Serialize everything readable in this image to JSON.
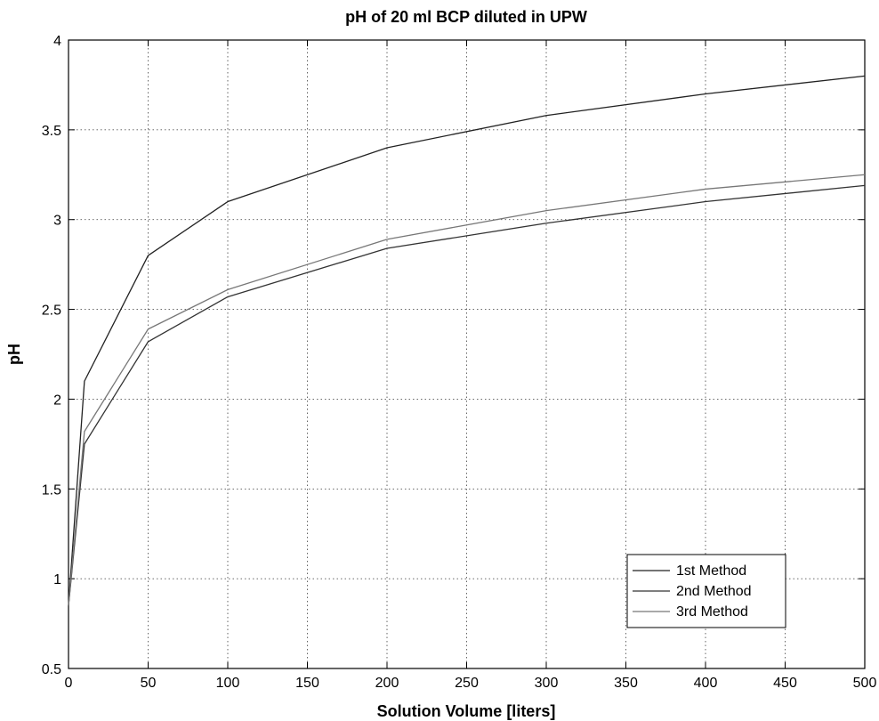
{
  "chart_data": {
    "type": "line",
    "title": "pH of 20 ml BCP diluted in UPW",
    "xlabel": "Solution Volume [liters]",
    "ylabel": "pH",
    "xlim": [
      0,
      500
    ],
    "ylim": [
      0.5,
      4
    ],
    "xticks": [
      "0",
      "50",
      "100",
      "150",
      "200",
      "250",
      "300",
      "350",
      "400",
      "450",
      "500"
    ],
    "yticks": [
      "0.5",
      "1",
      "1.5",
      "2",
      "2.5",
      "3",
      "3.5",
      "4"
    ],
    "grid": true,
    "legend_position": "bottom-right",
    "series": [
      {
        "name": "1st Method",
        "color": "#222222",
        "x": [
          0,
          10,
          50,
          100,
          200,
          300,
          400,
          500
        ],
        "values": [
          0.85,
          2.1,
          2.8,
          3.1,
          3.4,
          3.58,
          3.7,
          3.8
        ]
      },
      {
        "name": "2nd Method",
        "color": "#333333",
        "x": [
          0,
          10,
          50,
          100,
          200,
          300,
          400,
          500
        ],
        "values": [
          0.85,
          1.75,
          2.32,
          2.57,
          2.84,
          2.98,
          3.1,
          3.19
        ]
      },
      {
        "name": "3rd Method",
        "color": "#777777",
        "x": [
          0,
          10,
          50,
          100,
          200,
          300,
          400,
          500
        ],
        "values": [
          0.85,
          1.82,
          2.39,
          2.61,
          2.89,
          3.05,
          3.17,
          3.25
        ]
      }
    ]
  }
}
